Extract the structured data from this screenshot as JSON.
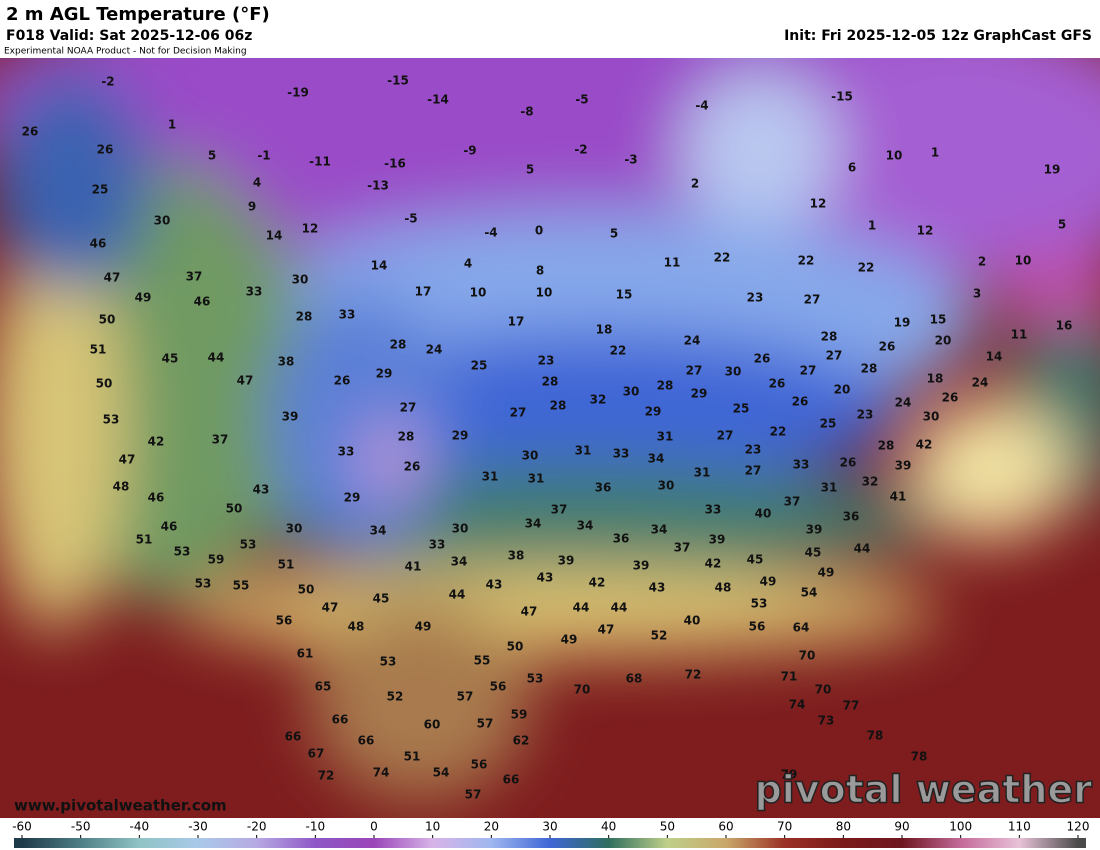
{
  "header": {
    "title": "2 m AGL Temperature (°F)",
    "valid": "F018 Valid: Sat 2025-12-06 06z",
    "init": "Init: Fri 2025-12-05 12z GraphCast GFS",
    "disclaimer": "Experimental NOAA Product - Not for Decision Making"
  },
  "map": {
    "temperature_labels": [
      -2,
      -19,
      -15,
      -14,
      -5,
      -4,
      -15,
      26,
      1,
      -8,
      26,
      5,
      -1,
      -11,
      -16,
      -9,
      -2,
      -3,
      10,
      1,
      6,
      19,
      4,
      -13,
      5,
      2,
      25,
      9,
      12,
      30,
      14,
      12,
      -5,
      -4,
      0,
      5,
      1,
      12,
      5,
      46,
      22,
      22,
      22,
      2,
      10,
      37,
      30,
      14,
      4,
      8,
      11,
      47,
      49,
      33,
      17,
      10,
      10,
      15,
      23,
      27,
      3,
      46,
      50,
      28,
      33,
      17,
      18,
      19,
      15,
      11,
      16,
      51,
      45,
      44,
      28,
      24,
      24,
      28,
      26,
      20,
      38,
      25,
      23,
      22,
      26,
      27,
      28,
      14,
      50,
      47,
      26,
      29,
      28,
      27,
      30,
      27,
      18,
      24,
      26,
      20,
      53,
      27,
      27,
      28,
      32,
      30,
      28,
      29,
      25,
      26,
      24,
      26,
      39,
      29,
      23,
      25,
      30,
      42,
      37,
      28,
      29,
      31,
      27,
      22,
      47,
      33,
      26,
      30,
      31,
      33,
      34,
      23,
      28,
      42,
      48,
      31,
      31,
      27,
      33,
      26,
      39,
      43,
      46,
      29,
      36,
      30,
      31,
      31,
      32,
      50,
      37,
      33,
      37,
      40,
      36,
      41,
      46,
      30,
      34,
      30,
      34,
      34,
      34,
      39,
      51,
      53,
      36,
      37,
      39,
      45,
      44,
      53,
      59,
      51,
      33,
      38,
      39,
      45,
      41,
      34,
      43,
      43,
      42,
      39,
      42,
      49,
      53,
      55,
      50,
      43,
      48,
      49,
      54,
      45,
      44,
      47,
      47,
      44,
      44,
      53,
      56,
      48,
      49,
      47,
      52,
      40,
      56,
      64,
      49,
      50,
      61,
      53,
      55,
      70,
      65,
      56,
      53,
      70,
      68,
      72,
      71,
      70,
      52,
      57,
      74,
      66,
      60,
      57,
      59,
      73,
      77,
      66,
      66,
      62,
      78,
      67,
      51,
      56,
      78,
      72,
      74,
      54,
      66,
      79,
      57
    ]
  },
  "colorbar": {
    "ticks": [
      -60,
      -50,
      -40,
      -30,
      -20,
      -10,
      0,
      10,
      20,
      30,
      40,
      50,
      60,
      70,
      80,
      90,
      100,
      110,
      120
    ]
  },
  "footer": {
    "website": "www.pivotalweather.com",
    "logo": "pivotal weather"
  }
}
